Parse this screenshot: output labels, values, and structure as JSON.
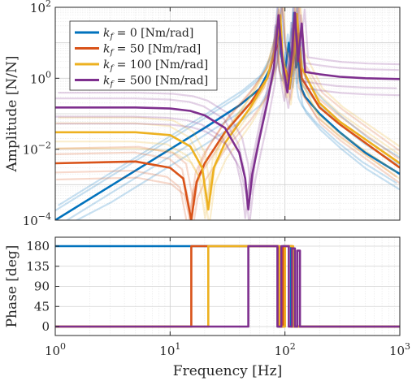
{
  "chart_data": [
    {
      "type": "line",
      "panel": "amplitude",
      "ylabel": "Amplitude [N/N]",
      "xlabel": "",
      "xscale": "log",
      "yscale": "log",
      "xlim": [
        1,
        1000
      ],
      "ylim": [
        0.0001,
        100
      ],
      "grid": true,
      "legend_position": "top-left",
      "x_ticks": [
        {
          "value": 1,
          "base": "10",
          "exp": "0"
        },
        {
          "value": 10,
          "base": "10",
          "exp": "1"
        },
        {
          "value": 100,
          "base": "10",
          "exp": "2"
        },
        {
          "value": 1000,
          "base": "10",
          "exp": "3"
        }
      ],
      "y_ticks": [
        {
          "value": 0.0001,
          "base": "10",
          "exp": "−4"
        },
        {
          "value": 0.01,
          "base": "10",
          "exp": "−2"
        },
        {
          "value": 1,
          "base": "10",
          "exp": "0"
        },
        {
          "value": 100,
          "base": "10",
          "exp": "2"
        }
      ],
      "series": [
        {
          "name": "k_f = 0 [Nm/rad]",
          "legend": {
            "var": "k",
            "sub": "f",
            "rest": " = 0 [Nm/rad]"
          },
          "color": "#0072BD",
          "x": [
            1,
            3,
            10,
            20,
            40,
            60,
            75,
            85,
            88,
            92,
            100,
            108,
            115,
            120,
            125,
            130,
            135,
            140,
            150,
            200,
            300,
            500,
            1000
          ],
          "y": [
            0.0001,
            0.0009,
            0.01,
            0.04,
            0.17,
            0.5,
            2.0,
            10,
            55,
            5,
            1.5,
            10,
            1.5,
            70,
            2,
            4,
            1,
            0.5,
            0.3,
            0.1,
            0.03,
            0.008,
            0.002
          ]
        },
        {
          "name": "k_f = 50 [Nm/rad]",
          "legend": {
            "var": "k",
            "sub": "f",
            "rest": " = 50 [Nm/rad]"
          },
          "color": "#D95319",
          "x": [
            1,
            5,
            10,
            13,
            15.3,
            17,
            20,
            30,
            50,
            70,
            85,
            90,
            95,
            110,
            118,
            125,
            140,
            200,
            300,
            1000
          ],
          "y": [
            0.004,
            0.0045,
            0.003,
            0.0015,
            0.0001,
            0.0012,
            0.004,
            0.03,
            0.2,
            1,
            8,
            50,
            3,
            0.8,
            3,
            60,
            1,
            0.15,
            0.05,
            0.003
          ]
        },
        {
          "name": "k_f = 100 [Nm/rad]",
          "legend": {
            "var": "k",
            "sub": "f",
            "rest": " = 100 [Nm/rad]"
          },
          "color": "#EDB120",
          "x": [
            1,
            5,
            10,
            15,
            19,
            21.5,
            24,
            30,
            50,
            70,
            85,
            91,
            96,
            110,
            120,
            127,
            140,
            200,
            300,
            1000
          ],
          "y": [
            0.03,
            0.03,
            0.025,
            0.012,
            0.003,
            0.0002,
            0.003,
            0.015,
            0.15,
            1,
            10,
            60,
            3,
            0.5,
            5,
            65,
            2,
            0.2,
            0.06,
            0.004
          ]
        },
        {
          "name": "k_f = 500 [Nm/rad]",
          "legend": {
            "var": "k",
            "sub": "f",
            "rest": " = 500 [Nm/rad]"
          },
          "color": "#7E2F8E",
          "x": [
            1,
            5,
            10,
            15,
            20,
            30,
            40,
            45,
            48,
            52,
            60,
            70,
            80,
            88,
            95,
            105,
            115,
            122,
            130,
            140,
            150,
            200,
            300,
            500,
            1000
          ],
          "y": [
            0.15,
            0.15,
            0.14,
            0.12,
            0.09,
            0.04,
            0.008,
            0.0015,
            0.0002,
            0.002,
            0.02,
            0.2,
            2,
            60,
            3,
            0.4,
            5,
            70,
            3,
            35,
            1.5,
            1.3,
            1.1,
            1.0,
            0.95
          ]
        }
      ]
    },
    {
      "type": "line",
      "panel": "phase",
      "ylabel": "Phase [deg]",
      "xlabel": "Frequency [Hz]",
      "xscale": "log",
      "xlim": [
        1,
        1000
      ],
      "ylim": [
        -20,
        200
      ],
      "grid": true,
      "y_ticks": [
        {
          "value": 0,
          "label": "0"
        },
        {
          "value": 45,
          "label": "45"
        },
        {
          "value": 90,
          "label": "90"
        },
        {
          "value": 135,
          "label": "135"
        },
        {
          "value": 180,
          "label": "180"
        }
      ],
      "x_ticks": [
        {
          "value": 1,
          "base": "10",
          "exp": "0"
        },
        {
          "value": 10,
          "base": "10",
          "exp": "1"
        },
        {
          "value": 100,
          "base": "10",
          "exp": "2"
        },
        {
          "value": 1000,
          "base": "10",
          "exp": "3"
        }
      ],
      "series": [
        {
          "name": "k_f = 0 [Nm/rad]",
          "color": "#0072BD",
          "x": [
            1,
            80,
            87,
            87,
            96,
            96,
            113,
            113,
            122,
            122,
            1000
          ],
          "y": [
            180,
            180,
            180,
            0,
            0,
            180,
            180,
            0,
            0,
            0,
            0
          ]
        },
        {
          "name": "k_f = 50 [Nm/rad]",
          "color": "#D95319",
          "x": [
            1,
            15.3,
            15.3,
            88,
            88,
            97,
            97,
            116,
            116,
            125,
            125,
            1000
          ],
          "y": [
            0,
            0,
            180,
            180,
            0,
            0,
            180,
            180,
            0,
            0,
            0,
            0
          ]
        },
        {
          "name": "k_f = 100 [Nm/rad]",
          "color": "#EDB120",
          "x": [
            1,
            21.5,
            21.5,
            90,
            90,
            100,
            100,
            118,
            118,
            128,
            128,
            1000
          ],
          "y": [
            0,
            0,
            180,
            180,
            0,
            0,
            180,
            180,
            0,
            0,
            0,
            0
          ]
        },
        {
          "name": "k_f = 500 [Nm/rad]",
          "color": "#7E2F8E",
          "x": [
            1,
            48,
            48,
            86,
            86,
            93,
            93,
            108,
            108,
            115,
            115,
            122,
            122,
            128,
            128,
            135,
            135,
            140,
            140,
            1000
          ],
          "y": [
            0,
            0,
            180,
            180,
            0,
            0,
            180,
            180,
            0,
            0,
            175,
            175,
            0,
            0,
            170,
            170,
            0,
            0,
            0,
            0
          ]
        }
      ]
    }
  ]
}
